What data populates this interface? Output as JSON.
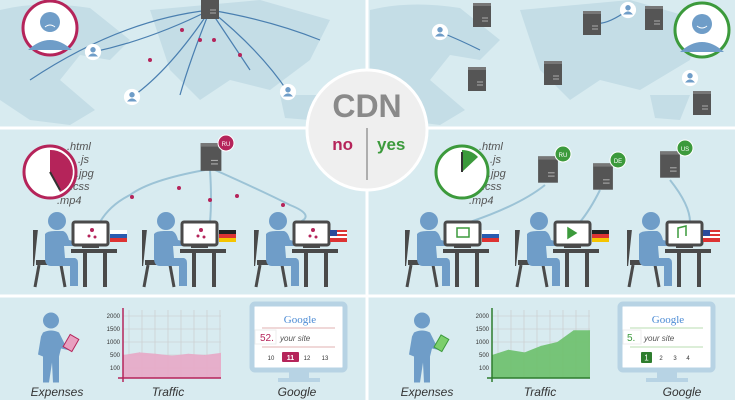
{
  "center": {
    "title": "CDN",
    "no_label": "no",
    "yes_label": "yes"
  },
  "colors": {
    "background": "#d8ebf0",
    "no": "#b5245a",
    "yes": "#3c9a3c",
    "person": "#6f9dc8",
    "map": "#c4dde6"
  },
  "files": [
    ".html",
    ".js",
    ".jpg",
    ".css",
    ".mp4"
  ],
  "left": {
    "server_badge": "RU",
    "flags": [
      "russia-flag",
      "germany-flag",
      "usa-flag"
    ],
    "labels": {
      "expenses": "Expenses",
      "traffic": "Traffic",
      "google": "Google"
    },
    "google": {
      "logo": "Google",
      "rank": "52.",
      "site": "your site",
      "pages": [
        "10",
        "11",
        "12",
        "13"
      ],
      "current_page": "11"
    }
  },
  "right": {
    "server_badges": [
      "RU",
      "DE",
      "US"
    ],
    "flags": [
      "russia-flag",
      "germany-flag",
      "usa-flag"
    ],
    "labels": {
      "expenses": "Expenses",
      "traffic": "Traffic",
      "google": "Google"
    },
    "google": {
      "logo": "Google",
      "rank": "5.",
      "site": "your site",
      "pages": [
        "1",
        "2",
        "3",
        "4"
      ],
      "current_page": "1"
    }
  },
  "chart_data": [
    {
      "type": "area",
      "y_ticks": [
        "2000",
        "1500",
        "1000",
        "500",
        "100"
      ],
      "values": [
        500,
        600,
        550,
        480,
        550,
        500,
        580
      ],
      "color": "#c96a98"
    },
    {
      "type": "area",
      "y_ticks": [
        "2000",
        "1500",
        "1000",
        "500",
        "100"
      ],
      "values": [
        500,
        700,
        600,
        850,
        1000,
        1450,
        1450
      ],
      "color": "#5cb85c"
    }
  ]
}
